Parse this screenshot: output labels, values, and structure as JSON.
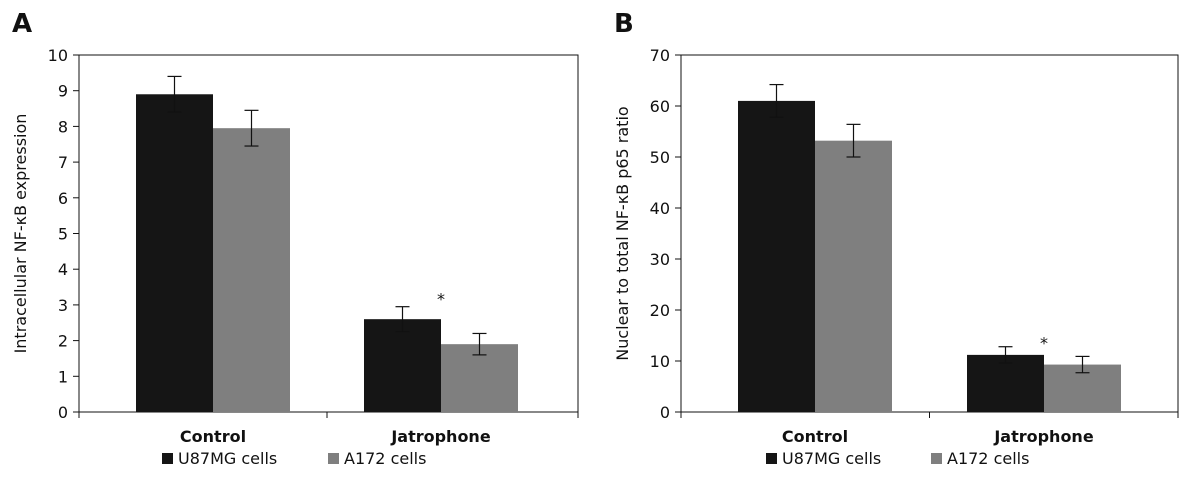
{
  "chart_data": [
    {
      "panel": "A",
      "type": "bar",
      "categories": [
        "Control",
        "Jatrophone"
      ],
      "series": [
        {
          "name": "U87MG cells",
          "color": "#151515",
          "values": [
            8.9,
            2.6
          ],
          "errors": [
            0.5,
            0.35
          ]
        },
        {
          "name": "A172 cells",
          "color": "#7f7f7f",
          "values": [
            7.95,
            1.9
          ],
          "errors": [
            0.5,
            0.3
          ]
        }
      ],
      "ylabel": "Intracellular NF-κB expression",
      "xlabel": "",
      "ylim": [
        0,
        10
      ],
      "yticks": [
        0,
        1,
        2,
        3,
        4,
        5,
        6,
        7,
        8,
        9,
        10
      ],
      "annotations": [
        {
          "text": "*",
          "category": 1,
          "value": 3.35
        }
      ],
      "legend": "bottom"
    },
    {
      "panel": "B",
      "type": "bar",
      "categories": [
        "Control",
        "Jatrophone"
      ],
      "series": [
        {
          "name": "U87MG cells",
          "color": "#151515",
          "values": [
            61,
            11.2
          ],
          "errors": [
            3.2,
            1.6
          ]
        },
        {
          "name": "A172 cells",
          "color": "#7f7f7f",
          "values": [
            53.2,
            9.3
          ],
          "errors": [
            3.2,
            1.6
          ]
        }
      ],
      "ylabel": "Nuclear to total NF-κB p65 ratio",
      "xlabel": "",
      "ylim": [
        0,
        70
      ],
      "yticks": [
        0,
        10,
        20,
        30,
        40,
        50,
        60,
        70
      ],
      "annotations": [
        {
          "text": "*",
          "category": 1,
          "value": 14.8
        }
      ],
      "legend": "bottom"
    }
  ]
}
